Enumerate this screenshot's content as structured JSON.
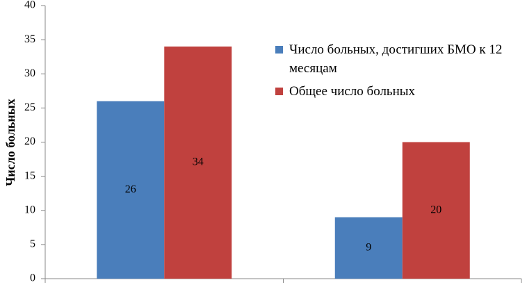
{
  "chart_data": {
    "type": "bar",
    "categories": [
      null,
      null
    ],
    "series": [
      {
        "name": "Число больных, достигших БМО к 12 месяцам",
        "color": "#4a7ebb",
        "values": [
          26,
          9
        ]
      },
      {
        "name": "Общее число больных",
        "color": "#c0413e",
        "values": [
          34,
          20
        ]
      }
    ],
    "y_label": "Число больных",
    "ylim": [
      0,
      40
    ],
    "yticks": [
      0,
      5,
      10,
      15,
      20,
      25,
      30,
      35,
      40
    ],
    "grid": false,
    "legend": "upper right",
    "data_labels": true
  }
}
